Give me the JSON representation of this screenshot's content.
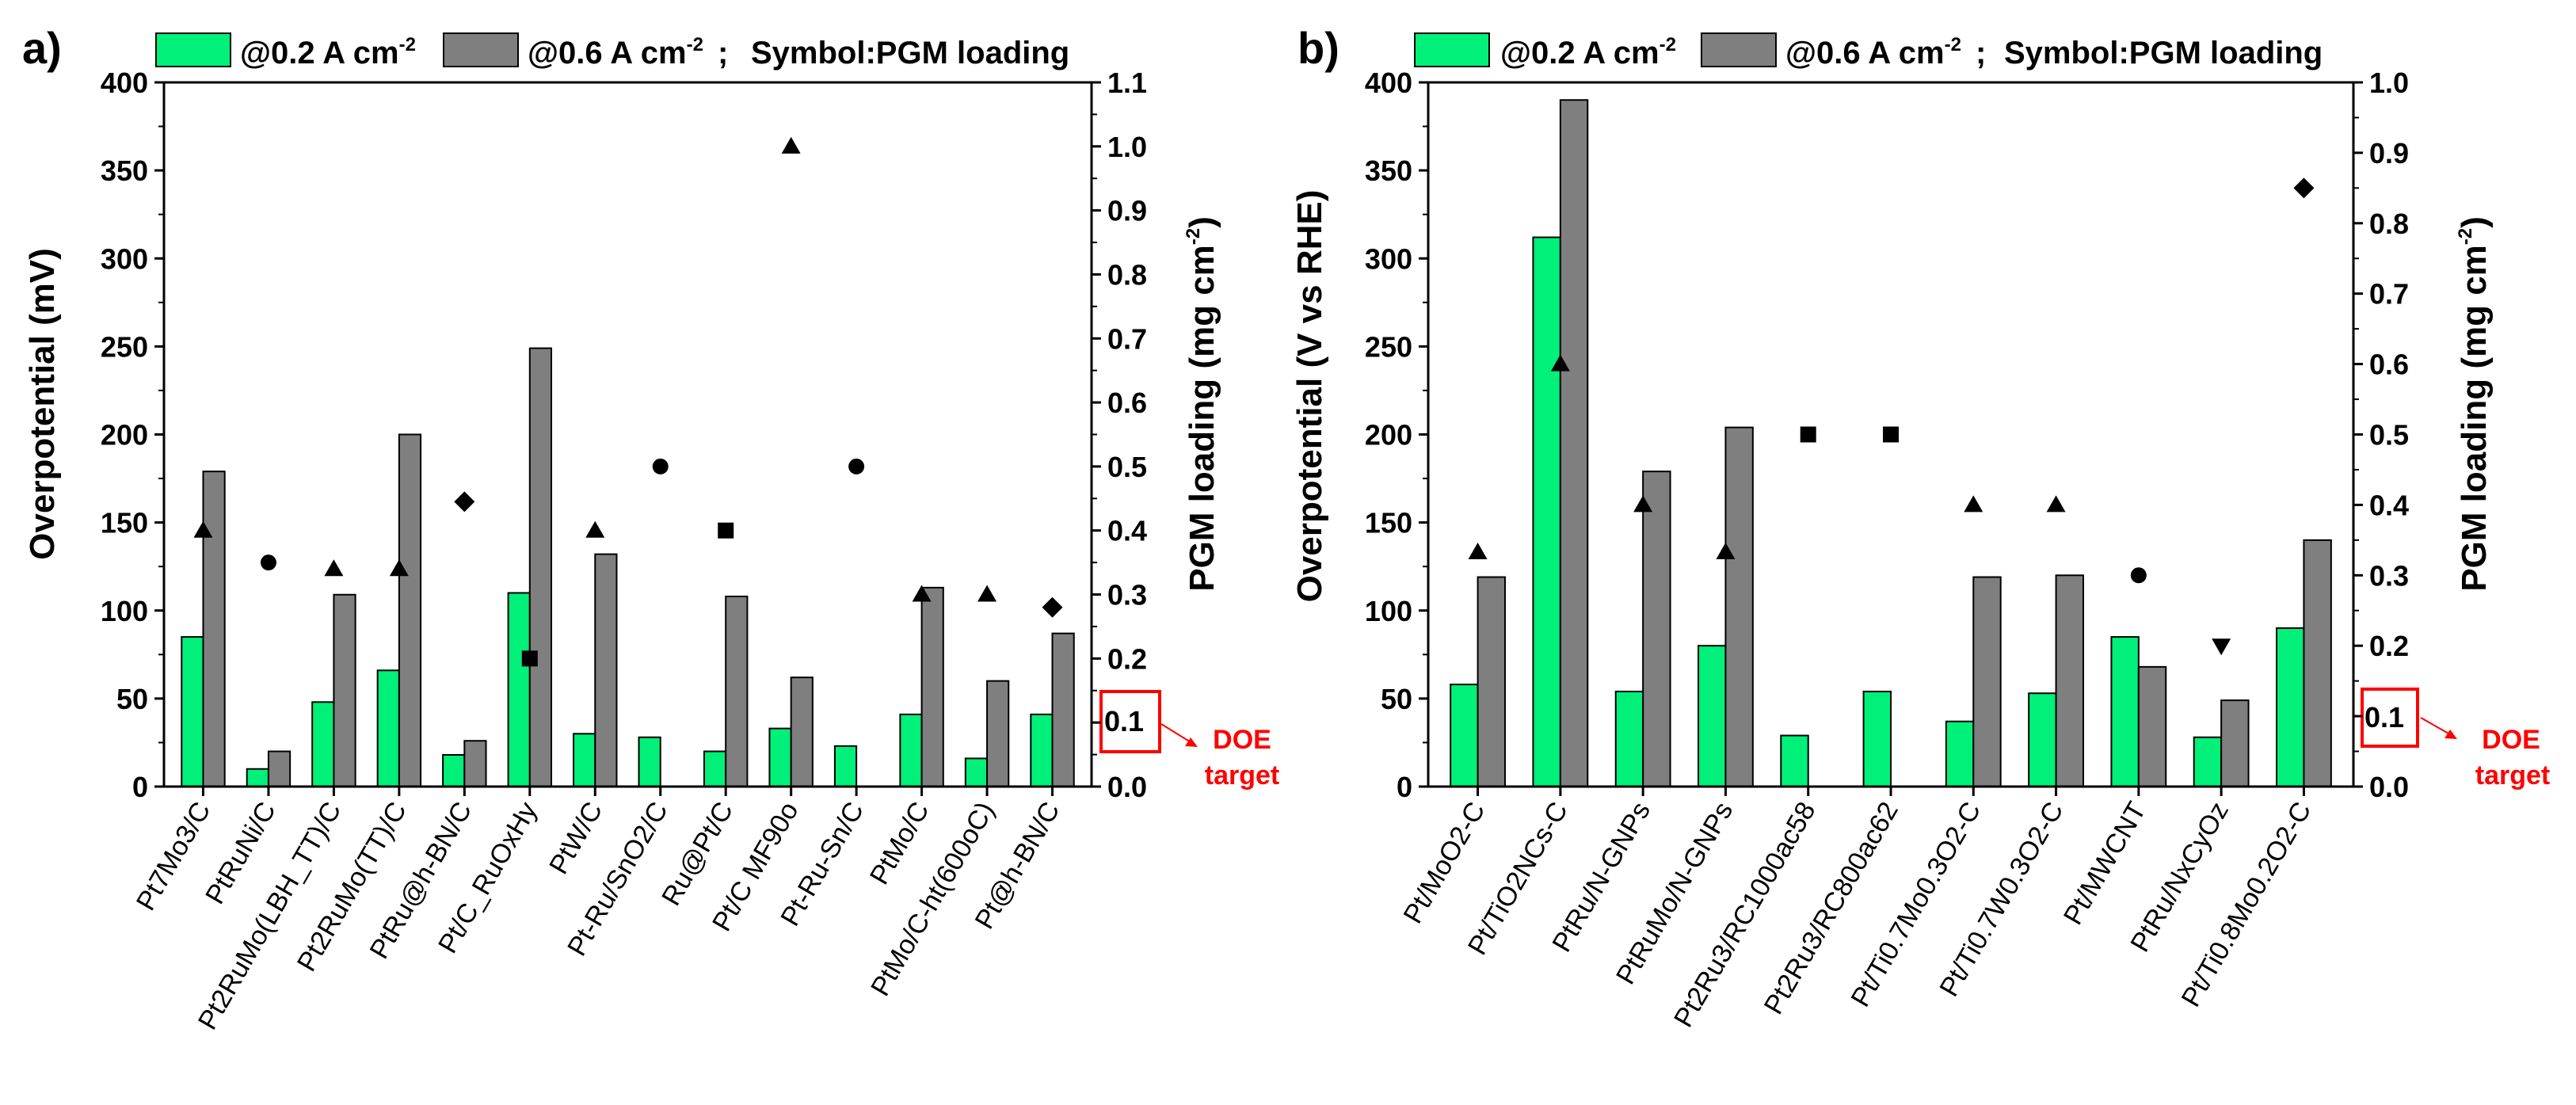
{
  "colors": {
    "green": "#00f07a",
    "gray": "#7f7f7f",
    "doe": "#ff0000",
    "axis": "#000000"
  },
  "legend": {
    "a": {
      "s1": "@0.2 A cm",
      "s1_exp": "-2",
      "s2": "@0.6 A cm",
      "s2_exp": "-2",
      "sep": ";",
      "symbol": "Symbol:PGM loading"
    },
    "b": {
      "s1": "@0.2 A cm",
      "s1_exp": "-2",
      "s2": "@0.6 A cm",
      "s2_exp": "-2",
      "sep": ";",
      "symbol": "Symbol:PGM loading"
    }
  },
  "doe": {
    "value_label": "0.1",
    "line1": "DOE",
    "line2": "target"
  },
  "chart_data": [
    {
      "panel_label": "a)",
      "type": "bar",
      "ylabel": "Overpotential (mV)",
      "y2label_main": "PGM loading (mg cm",
      "y2label_exp": "-2",
      "y2label_close": ")",
      "ylim": [
        0,
        400
      ],
      "yticks": [
        0,
        50,
        100,
        150,
        200,
        250,
        300,
        350,
        400
      ],
      "y2lim": [
        0,
        1.1
      ],
      "y2ticks": [
        "0.0",
        "0.1",
        "0.2",
        "0.3",
        "0.4",
        "0.5",
        "0.6",
        "0.7",
        "0.8",
        "0.9",
        "1.0",
        "1.1"
      ],
      "categories": [
        "Pt7Mo3/C",
        "PtRuNi/C",
        "Pt2RuMo(LBH_TT)/C",
        "Pt2RuMo(TT)/C",
        "PtRu@h-BN/C",
        "Pt/C_RuOxHy",
        "PtW/C",
        "Pt-Ru/SnO2/C",
        "Ru@Pt/C",
        "Pt/C MF90o",
        "Pt-Ru-Sn/C",
        "PtMo/C",
        "PtMo/C-ht(600oC)",
        "Pt@h-BN/C"
      ],
      "series": [
        {
          "name": "@0.2 A cm-2",
          "values": [
            85,
            10,
            48,
            66,
            18,
            110,
            30,
            28,
            20,
            33,
            23,
            41,
            16,
            41
          ]
        },
        {
          "name": "@0.6 A cm-2",
          "values": [
            179,
            20,
            109,
            200,
            26,
            249,
            132,
            null,
            108,
            62,
            null,
            113,
            60,
            87
          ]
        }
      ],
      "pgm_loading": [
        {
          "value": 0.4,
          "marker": "triangle"
        },
        {
          "value": 0.35,
          "marker": "circle"
        },
        {
          "value": 0.34,
          "marker": "triangle"
        },
        {
          "value": 0.34,
          "marker": "triangle"
        },
        {
          "value": 0.445,
          "marker": "diamond"
        },
        {
          "value": 0.2,
          "marker": "square"
        },
        {
          "value": 0.4,
          "marker": "triangle"
        },
        {
          "value": 0.5,
          "marker": "circle"
        },
        {
          "value": 0.4,
          "marker": "square"
        },
        {
          "value": 1.0,
          "marker": "triangle"
        },
        {
          "value": 0.5,
          "marker": "circle"
        },
        {
          "value": 0.3,
          "marker": "triangle"
        },
        {
          "value": 0.3,
          "marker": "triangle"
        },
        {
          "value": 0.28,
          "marker": "diamond"
        }
      ]
    },
    {
      "panel_label": "b)",
      "type": "bar",
      "ylabel": "Overpotential (V vs RHE)",
      "y2label_main": "PGM loading (mg cm",
      "y2label_exp": "-2",
      "y2label_close": ")",
      "ylim": [
        0,
        400
      ],
      "yticks": [
        0,
        50,
        100,
        150,
        200,
        250,
        300,
        350,
        400
      ],
      "y2lim": [
        0,
        1.0
      ],
      "y2ticks": [
        "0.0",
        "0.1",
        "0.2",
        "0.3",
        "0.4",
        "0.5",
        "0.6",
        "0.7",
        "0.8",
        "0.9",
        "1.0"
      ],
      "categories": [
        "Pt/MoO2-C",
        "Pt/TiO2NCs-C",
        "PtRu/N-GNPs",
        "PtRuMo/N-GNPs",
        "Pt2Ru3/RC1000ac58",
        "Pt2Ru3/RC800ac62",
        "Pt/Ti0.7Mo0.3O2-C",
        "Pt/Ti0.7W0.3O2-C",
        "Pt/MWCNT",
        "PtRu/NxCyOz",
        "Pt/Ti0.8Mo0.2O2-C"
      ],
      "series": [
        {
          "name": "@0.2 A cm-2",
          "values": [
            58,
            312,
            54,
            80,
            29,
            54,
            37,
            53,
            85,
            28,
            90
          ]
        },
        {
          "name": "@0.6 A cm-2",
          "values": [
            119,
            390,
            179,
            204,
            null,
            null,
            119,
            120,
            68,
            49,
            140
          ]
        }
      ],
      "pgm_loading": [
        {
          "value": 0.333,
          "marker": "triangle"
        },
        {
          "value": 0.6,
          "marker": "triangle"
        },
        {
          "value": 0.4,
          "marker": "triangle"
        },
        {
          "value": 0.333,
          "marker": "triangle"
        },
        {
          "value": 0.5,
          "marker": "square"
        },
        {
          "value": 0.5,
          "marker": "square"
        },
        {
          "value": 0.4,
          "marker": "triangle"
        },
        {
          "value": 0.4,
          "marker": "triangle"
        },
        {
          "value": 0.3,
          "marker": "circle"
        },
        {
          "value": 0.2,
          "marker": "triangle-down"
        },
        {
          "value": 0.85,
          "marker": "diamond"
        }
      ]
    }
  ]
}
